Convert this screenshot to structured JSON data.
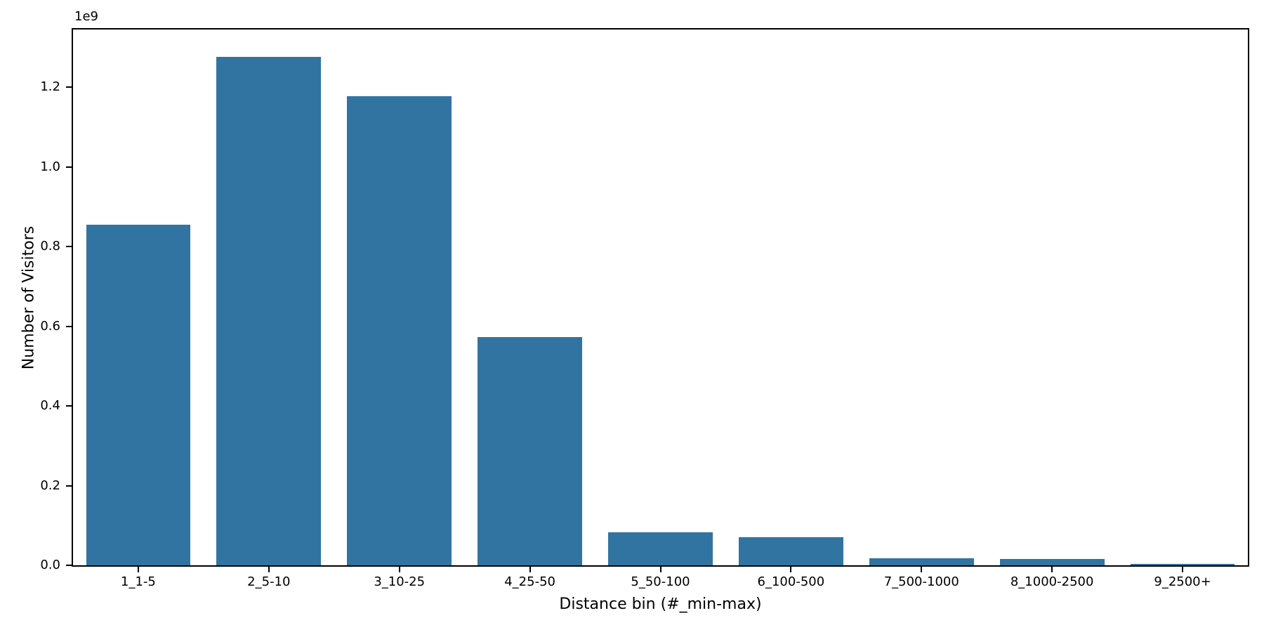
{
  "figure": {
    "background": "#ffffff"
  },
  "chart_data": {
    "type": "bar",
    "title": "",
    "xlabel": "Distance bin (#_min-max)",
    "ylabel": "Number of Visitors",
    "y_offset_label": "1e9",
    "categories": [
      "1_1-5",
      "2_5-10",
      "3_10-25",
      "4_25-50",
      "5_50-100",
      "6_100-500",
      "7_500-1000",
      "8_1000-2500",
      "9_2500+"
    ],
    "values": [
      855000000,
      1276000000,
      1177000000,
      573000000,
      83000000,
      70000000,
      17000000,
      16000000,
      4000000
    ],
    "yticks": [
      0,
      200000000,
      400000000,
      600000000,
      800000000,
      1000000000,
      1200000000
    ],
    "ytick_labels": [
      "0.0",
      "0.2",
      "0.4",
      "0.6",
      "0.8",
      "1.0",
      "1.2"
    ],
    "ylim": [
      0,
      1345000000
    ],
    "bar_color": "#3274a1",
    "axis_color": "#000000",
    "bar_width_fraction": 0.8,
    "grid": false,
    "legend_position": "none"
  }
}
